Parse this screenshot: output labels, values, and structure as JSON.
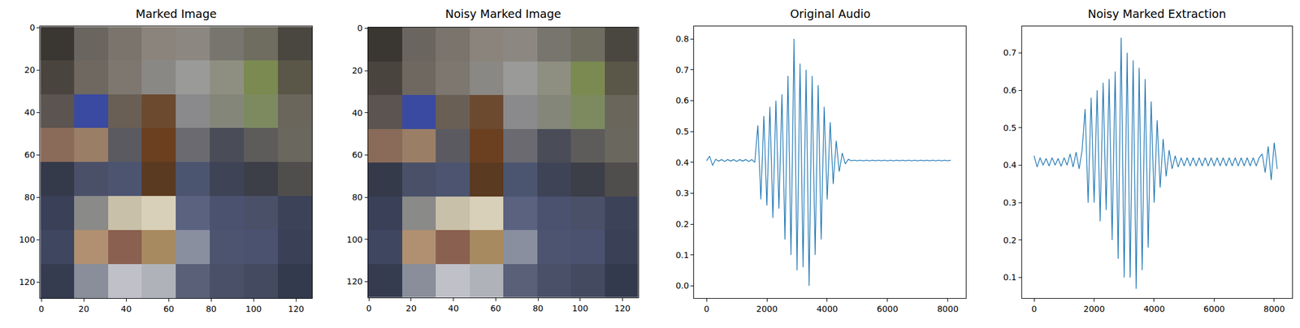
{
  "chart_data": [
    {
      "type": "image",
      "title": "Marked Image",
      "xlim": [
        -0.5,
        127.5
      ],
      "ylim": [
        127.5,
        -0.5
      ],
      "xticks": [
        0,
        20,
        40,
        60,
        80,
        100,
        120
      ],
      "yticks": [
        0,
        20,
        40,
        60,
        80,
        100,
        120
      ],
      "pixels": [
        [
          "#3a3632",
          "#6b6560",
          "#7a746c",
          "#8a847c",
          "#8c8780",
          "#77756e",
          "#6f6c60",
          "#4a4640"
        ],
        [
          "#4a443e",
          "#6e6860",
          "#7d776f",
          "#8a8884",
          "#9a9a98",
          "#8e8f80",
          "#7a8a50",
          "#5a5648"
        ],
        [
          "#5c5450",
          "#3a4aa0",
          "#6a5f55",
          "#6b4a30",
          "#8a8a8c",
          "#85867a",
          "#7d8a60",
          "#6a665c"
        ],
        [
          "#8a6a58",
          "#9a7e66",
          "#5a5a60",
          "#6a4020",
          "#6a6a70",
          "#4a4c58",
          "#5e5c5a",
          "#6a675f"
        ],
        [
          "#353a4a",
          "#4a5068",
          "#4c5470",
          "#5a3a20",
          "#4c5570",
          "#3e4456",
          "#3c3e48",
          "#504e4c"
        ],
        [
          "#3a4058",
          "#8a8a88",
          "#c8c0a8",
          "#d8d0b8",
          "#5a6280",
          "#4a5270",
          "#4a5068",
          "#3c4258"
        ],
        [
          "#3e4660",
          "#b09070",
          "#8a6050",
          "#a88a60",
          "#8a8fa0",
          "#4c5470",
          "#4a5270",
          "#3a4056"
        ],
        [
          "#363c50",
          "#8a8e9a",
          "#c0c0c8",
          "#b0b2ba",
          "#5a6078",
          "#4a5068",
          "#444a60",
          "#343a4e"
        ]
      ]
    },
    {
      "type": "image",
      "title": "Noisy Marked Image",
      "xlim": [
        -0.5,
        127.5
      ],
      "ylim": [
        127.5,
        -0.5
      ],
      "xticks": [
        0,
        20,
        40,
        60,
        80,
        100,
        120
      ],
      "yticks": [
        0,
        20,
        40,
        60,
        80,
        100,
        120
      ],
      "pixels": [
        [
          "#3a3632",
          "#6b6560",
          "#7a746c",
          "#8a847c",
          "#8c8780",
          "#77756e",
          "#6f6c60",
          "#4a4640"
        ],
        [
          "#4a443e",
          "#6e6860",
          "#7d776f",
          "#8a8884",
          "#9a9a98",
          "#8e8f80",
          "#7a8a50",
          "#5a5648"
        ],
        [
          "#5c5450",
          "#3a4aa0",
          "#6a5f55",
          "#6b4a30",
          "#8a8a8c",
          "#85867a",
          "#7d8a60",
          "#6a665c"
        ],
        [
          "#8a6a58",
          "#9a7e66",
          "#5a5a60",
          "#6a4020",
          "#6a6a70",
          "#4a4c58",
          "#5e5c5a",
          "#6a675f"
        ],
        [
          "#353a4a",
          "#4a5068",
          "#4c5470",
          "#5a3a20",
          "#4c5570",
          "#3e4456",
          "#3c3e48",
          "#504e4c"
        ],
        [
          "#3a4058",
          "#8a8a88",
          "#c8c0a8",
          "#d8d0b8",
          "#5a6280",
          "#4a5270",
          "#4a5068",
          "#3c4258"
        ],
        [
          "#3e4660",
          "#b09070",
          "#8a6050",
          "#a88a60",
          "#8a8fa0",
          "#4c5470",
          "#4a5270",
          "#3a4056"
        ],
        [
          "#363c50",
          "#8a8e9a",
          "#c0c0c8",
          "#b0b2ba",
          "#5a6078",
          "#4a5068",
          "#444a60",
          "#343a4e"
        ]
      ]
    },
    {
      "type": "line",
      "title": "Original Audio",
      "color": "#1f77b4",
      "xlim": [
        -410,
        8600
      ],
      "ylim": [
        -0.04,
        0.84
      ],
      "xticks": [
        0,
        2000,
        4000,
        6000,
        8000
      ],
      "yticks": [
        {
          "value": 0,
          "label": "0.0"
        },
        0.1,
        0.2,
        0.3,
        0.4,
        0.5,
        0.6,
        0.7,
        0.8
      ],
      "x": [
        0,
        100,
        200,
        300,
        400,
        500,
        600,
        700,
        800,
        900,
        1000,
        1100,
        1200,
        1300,
        1400,
        1500,
        1600,
        1700,
        1800,
        1900,
        2000,
        2100,
        2200,
        2300,
        2400,
        2500,
        2600,
        2700,
        2800,
        2900,
        3000,
        3100,
        3200,
        3300,
        3400,
        3500,
        3600,
        3700,
        3800,
        3900,
        4000,
        4100,
        4200,
        4300,
        4400,
        4500,
        4600,
        4700,
        4800,
        4900,
        5000,
        5100,
        5200,
        5300,
        5400,
        5500,
        5600,
        5700,
        5800,
        5900,
        6000,
        6100,
        6200,
        6300,
        6400,
        6500,
        6600,
        6700,
        6800,
        6900,
        7000,
        7100,
        7200,
        7300,
        7400,
        7500,
        7600,
        7700,
        7800,
        7900,
        8000,
        8100
      ],
      "values": [
        0.405,
        0.42,
        0.39,
        0.41,
        0.404,
        0.409,
        0.403,
        0.409,
        0.404,
        0.409,
        0.403,
        0.409,
        0.404,
        0.409,
        0.403,
        0.409,
        0.4,
        0.52,
        0.28,
        0.55,
        0.26,
        0.58,
        0.22,
        0.6,
        0.25,
        0.62,
        0.15,
        0.68,
        0.1,
        0.8,
        0.05,
        0.72,
        0.06,
        0.7,
        0.0,
        0.68,
        0.1,
        0.65,
        0.15,
        0.58,
        0.28,
        0.53,
        0.33,
        0.47,
        0.37,
        0.43,
        0.395,
        0.41,
        0.405,
        0.407,
        0.405,
        0.407,
        0.405,
        0.407,
        0.405,
        0.407,
        0.405,
        0.407,
        0.405,
        0.407,
        0.405,
        0.407,
        0.405,
        0.407,
        0.405,
        0.407,
        0.405,
        0.407,
        0.405,
        0.407,
        0.405,
        0.407,
        0.405,
        0.407,
        0.405,
        0.407,
        0.405,
        0.407,
        0.405,
        0.407,
        0.405,
        0.407
      ]
    },
    {
      "type": "line",
      "title": "Noisy Marked Extraction",
      "color": "#1f77b4",
      "xlim": [
        -410,
        8600
      ],
      "ylim": [
        0.045,
        0.77
      ],
      "xticks": [
        0,
        2000,
        4000,
        6000,
        8000
      ],
      "yticks": [
        0.1,
        0.2,
        0.3,
        0.4,
        0.5,
        0.6,
        0.7
      ],
      "x": [
        0,
        100,
        200,
        300,
        400,
        500,
        600,
        700,
        800,
        900,
        1000,
        1100,
        1200,
        1300,
        1400,
        1500,
        1600,
        1700,
        1800,
        1900,
        2000,
        2100,
        2200,
        2300,
        2400,
        2500,
        2600,
        2700,
        2800,
        2900,
        3000,
        3100,
        3200,
        3300,
        3400,
        3500,
        3600,
        3700,
        3800,
        3900,
        4000,
        4100,
        4200,
        4300,
        4400,
        4500,
        4600,
        4700,
        4800,
        4900,
        5000,
        5100,
        5200,
        5300,
        5400,
        5500,
        5600,
        5700,
        5800,
        5900,
        6000,
        6100,
        6200,
        6300,
        6400,
        6500,
        6600,
        6700,
        6800,
        6900,
        7000,
        7100,
        7200,
        7300,
        7400,
        7500,
        7600,
        7700,
        7800,
        7900,
        8000,
        8100
      ],
      "values": [
        0.425,
        0.395,
        0.42,
        0.4,
        0.418,
        0.398,
        0.42,
        0.4,
        0.418,
        0.397,
        0.42,
        0.4,
        0.43,
        0.395,
        0.435,
        0.39,
        0.44,
        0.55,
        0.3,
        0.58,
        0.3,
        0.6,
        0.25,
        0.62,
        0.28,
        0.63,
        0.2,
        0.65,
        0.15,
        0.74,
        0.1,
        0.7,
        0.1,
        0.68,
        0.07,
        0.66,
        0.12,
        0.63,
        0.18,
        0.57,
        0.3,
        0.52,
        0.34,
        0.47,
        0.37,
        0.44,
        0.39,
        0.425,
        0.395,
        0.42,
        0.398,
        0.42,
        0.398,
        0.42,
        0.398,
        0.42,
        0.398,
        0.42,
        0.398,
        0.42,
        0.398,
        0.42,
        0.398,
        0.42,
        0.398,
        0.42,
        0.398,
        0.42,
        0.398,
        0.42,
        0.398,
        0.42,
        0.398,
        0.42,
        0.398,
        0.42,
        0.43,
        0.38,
        0.45,
        0.36,
        0.46,
        0.39
      ]
    }
  ]
}
